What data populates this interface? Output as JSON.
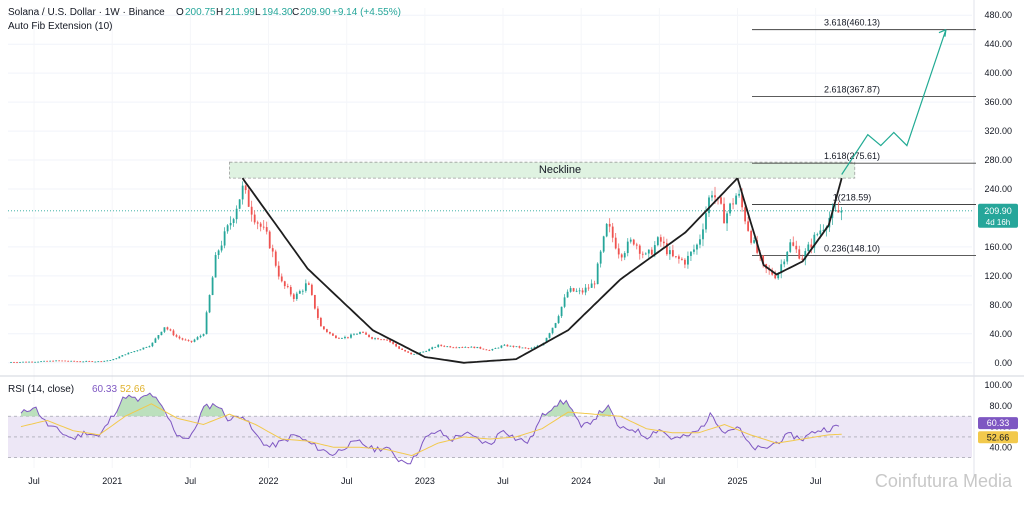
{
  "header": {
    "symbol": "Solana / U.S. Dollar · 1W · Binance",
    "o_label": "O",
    "o_value": "200.75",
    "h_label": "H",
    "h_value": "211.99",
    "l_label": "L",
    "l_value": "194.30",
    "c_label": "C",
    "c_value": "209.90",
    "change": "+9.14 (+4.55%)",
    "indicator": "Auto Fib Extension (10)"
  },
  "rsi_header": {
    "label": "RSI (14, close)",
    "rsi_value": "60.33",
    "ma_value": "52.66"
  },
  "colors": {
    "up": "#26a69a",
    "down": "#ef5350",
    "cup_curve": "#1e1e1e",
    "neckline_fill": "#dff2e1",
    "projection": "#22ab94",
    "rsi_line": "#7e57c2",
    "rsi_ma": "#f2c94c",
    "rsi_band": "#ede7f6",
    "price_tag": "#26a69a",
    "rsi_tag": "#7e57c2",
    "rsi_ma_tag": "#f2c94c"
  },
  "neckline_label": "Neckline",
  "price_tag": {
    "price": "209.90",
    "countdown": "4d 16h"
  },
  "rsi_tags": {
    "rsi": "60.33",
    "ma": "52.66"
  },
  "watermark": "Coinfutura Media",
  "fib_levels": [
    {
      "label": "3.618(460.13)",
      "price": 460.13
    },
    {
      "label": "2.618(367.87)",
      "price": 367.87
    },
    {
      "label": "1.618(275.61)",
      "price": 275.61
    },
    {
      "label": "1(218.59)",
      "price": 218.59
    },
    {
      "label": "0.236(148.10)",
      "price": 148.1
    }
  ],
  "x_labels": [
    "Jul",
    "2021",
    "Jul",
    "2022",
    "Jul",
    "2023",
    "Jul",
    "2024",
    "Jul",
    "2025",
    "Jul"
  ],
  "chart_data": {
    "type": "candlestick",
    "title": "Solana / U.S. Dollar · 1W · Binance",
    "price_axis": {
      "ticks": [
        0,
        40,
        80,
        120,
        160,
        200,
        240,
        280,
        320,
        360,
        400,
        440,
        480
      ],
      "tick_labels": [
        "0.00",
        "40.00",
        "80.00",
        "120.00",
        "160.00",
        "200.00",
        "240.00",
        "280.00",
        "320.00",
        "360.00",
        "400.00",
        "440.00",
        "480.00"
      ],
      "range": [
        -10,
        490
      ]
    },
    "rsi_axis": {
      "ticks": [
        40,
        60,
        80,
        100
      ],
      "tick_labels": [
        "40.00",
        "60.00",
        "80.00",
        "100.00"
      ],
      "range": [
        20,
        105
      ],
      "band": [
        30,
        70
      ]
    },
    "time_axis": {
      "labels": [
        "Jul",
        "2021",
        "Jul",
        "2022",
        "Jul",
        "2023",
        "Jul",
        "2024",
        "Jul",
        "2025",
        "Jul"
      ],
      "label_dates": [
        "2020-07",
        "2021-01",
        "2021-07",
        "2022-01",
        "2022-07",
        "2023-01",
        "2023-07",
        "2024-01",
        "2024-07",
        "2025-01",
        "2025-07"
      ],
      "range": [
        "2020-05",
        "2026-07"
      ]
    },
    "price_path": [
      [
        "2020-05",
        0.8
      ],
      [
        "2020-07",
        1.5
      ],
      [
        "2020-09",
        3.0
      ],
      [
        "2020-10",
        2.0
      ],
      [
        "2020-12",
        1.8
      ],
      [
        "2021-01",
        4
      ],
      [
        "2021-02",
        12
      ],
      [
        "2021-03",
        18
      ],
      [
        "2021-04",
        25
      ],
      [
        "2021-05",
        50
      ],
      [
        "2021-06",
        35
      ],
      [
        "2021-07",
        28
      ],
      [
        "2021-08",
        40
      ],
      [
        "2021-09",
        150
      ],
      [
        "2021-10",
        190
      ],
      [
        "2021-11",
        240
      ],
      [
        "2021-12",
        200
      ],
      [
        "2022-01",
        170
      ],
      [
        "2022-02",
        110
      ],
      [
        "2022-03",
        90
      ],
      [
        "2022-04",
        110
      ],
      [
        "2022-05",
        50
      ],
      [
        "2022-06",
        36
      ],
      [
        "2022-07",
        35
      ],
      [
        "2022-08",
        42
      ],
      [
        "2022-09",
        34
      ],
      [
        "2022-10",
        33
      ],
      [
        "2022-11",
        20
      ],
      [
        "2022-12",
        11
      ],
      [
        "2023-01",
        16
      ],
      [
        "2023-02",
        24
      ],
      [
        "2023-03",
        22
      ],
      [
        "2023-04",
        22
      ],
      [
        "2023-05",
        21
      ],
      [
        "2023-06",
        17
      ],
      [
        "2023-07",
        24
      ],
      [
        "2023-08",
        22
      ],
      [
        "2023-09",
        19
      ],
      [
        "2023-10",
        25
      ],
      [
        "2023-11",
        55
      ],
      [
        "2023-12",
        100
      ],
      [
        "2024-01",
        97
      ],
      [
        "2024-02",
        110
      ],
      [
        "2024-03",
        190
      ],
      [
        "2024-04",
        150
      ],
      [
        "2024-05",
        170
      ],
      [
        "2024-06",
        145
      ],
      [
        "2024-07",
        170
      ],
      [
        "2024-08",
        145
      ],
      [
        "2024-09",
        140
      ],
      [
        "2024-10",
        165
      ],
      [
        "2024-11",
        240
      ],
      [
        "2024-12",
        200
      ],
      [
        "2025-01",
        235
      ],
      [
        "2025-02",
        175
      ],
      [
        "2025-03",
        130
      ],
      [
        "2025-04",
        120
      ],
      [
        "2025-05",
        165
      ],
      [
        "2025-06",
        145
      ],
      [
        "2025-07",
        175
      ],
      [
        "2025-08",
        200
      ],
      [
        "2025-09",
        209.9
      ]
    ],
    "rsi_path": [
      [
        "2020-06",
        72
      ],
      [
        "2020-07",
        80
      ],
      [
        "2020-08",
        62
      ],
      [
        "2020-10",
        48
      ],
      [
        "2020-11",
        55
      ],
      [
        "2020-12",
        50
      ],
      [
        "2021-01",
        70
      ],
      [
        "2021-02",
        90
      ],
      [
        "2021-03",
        85
      ],
      [
        "2021-04",
        92
      ],
      [
        "2021-05",
        75
      ],
      [
        "2021-06",
        52
      ],
      [
        "2021-07",
        48
      ],
      [
        "2021-08",
        78
      ],
      [
        "2021-09",
        82
      ],
      [
        "2021-10",
        66
      ],
      [
        "2021-11",
        72
      ],
      [
        "2021-12",
        52
      ],
      [
        "2022-01",
        40
      ],
      [
        "2022-02",
        45
      ],
      [
        "2022-03",
        52
      ],
      [
        "2022-04",
        45
      ],
      [
        "2022-05",
        38
      ],
      [
        "2022-06",
        33
      ],
      [
        "2022-07",
        42
      ],
      [
        "2022-08",
        45
      ],
      [
        "2022-09",
        38
      ],
      [
        "2022-10",
        40
      ],
      [
        "2022-11",
        28
      ],
      [
        "2022-12",
        26
      ],
      [
        "2023-01",
        48
      ],
      [
        "2023-02",
        56
      ],
      [
        "2023-03",
        47
      ],
      [
        "2023-04",
        54
      ],
      [
        "2023-05",
        48
      ],
      [
        "2023-06",
        42
      ],
      [
        "2023-07",
        58
      ],
      [
        "2023-08",
        48
      ],
      [
        "2023-09",
        45
      ],
      [
        "2023-10",
        70
      ],
      [
        "2023-11",
        82
      ],
      [
        "2023-12",
        84
      ],
      [
        "2024-01",
        58
      ],
      [
        "2024-02",
        68
      ],
      [
        "2024-03",
        80
      ],
      [
        "2024-04",
        57
      ],
      [
        "2024-05",
        58
      ],
      [
        "2024-06",
        50
      ],
      [
        "2024-07",
        58
      ],
      [
        "2024-08",
        48
      ],
      [
        "2024-09",
        50
      ],
      [
        "2024-10",
        56
      ],
      [
        "2024-11",
        72
      ],
      [
        "2024-12",
        55
      ],
      [
        "2025-01",
        60
      ],
      [
        "2025-02",
        40
      ],
      [
        "2025-03",
        38
      ],
      [
        "2025-04",
        45
      ],
      [
        "2025-05",
        52
      ],
      [
        "2025-06",
        48
      ],
      [
        "2025-07",
        56
      ],
      [
        "2025-08",
        58
      ],
      [
        "2025-09",
        60.33
      ]
    ],
    "rsi_ma_path": [
      [
        "2020-06",
        60
      ],
      [
        "2020-08",
        66
      ],
      [
        "2020-10",
        56
      ],
      [
        "2020-12",
        52
      ],
      [
        "2021-02",
        70
      ],
      [
        "2021-04",
        82
      ],
      [
        "2021-06",
        68
      ],
      [
        "2021-08",
        62
      ],
      [
        "2021-10",
        72
      ],
      [
        "2021-12",
        62
      ],
      [
        "2022-02",
        48
      ],
      [
        "2022-04",
        46
      ],
      [
        "2022-06",
        40
      ],
      [
        "2022-08",
        40
      ],
      [
        "2022-10",
        38
      ],
      [
        "2022-12",
        32
      ],
      [
        "2023-02",
        44
      ],
      [
        "2023-04",
        50
      ],
      [
        "2023-06",
        48
      ],
      [
        "2023-08",
        50
      ],
      [
        "2023-10",
        58
      ],
      [
        "2023-12",
        74
      ],
      [
        "2024-02",
        72
      ],
      [
        "2024-04",
        70
      ],
      [
        "2024-06",
        58
      ],
      [
        "2024-08",
        54
      ],
      [
        "2024-10",
        54
      ],
      [
        "2024-12",
        62
      ],
      [
        "2025-02",
        52
      ],
      [
        "2025-04",
        44
      ],
      [
        "2025-06",
        48
      ],
      [
        "2025-08",
        52
      ],
      [
        "2025-09",
        52.66
      ]
    ],
    "cup_curve": [
      [
        "2021-11",
        255
      ],
      [
        "2022-04",
        130
      ],
      [
        "2022-09",
        45
      ],
      [
        "2023-01",
        8
      ],
      [
        "2023-04",
        0
      ],
      [
        "2023-08",
        5
      ],
      [
        "2023-12",
        45
      ],
      [
        "2024-04",
        115
      ],
      [
        "2024-09",
        180
      ],
      [
        "2025-01",
        255
      ]
    ],
    "handle_curve": [
      [
        "2025-01",
        255
      ],
      [
        "2025-03",
        135
      ],
      [
        "2025-04",
        122
      ],
      [
        "2025-06",
        140
      ],
      [
        "2025-08",
        190
      ],
      [
        "2025-09",
        255
      ]
    ],
    "projection": [
      [
        "2025-09",
        260
      ],
      [
        "2025-11",
        315
      ],
      [
        "2025-12",
        300
      ],
      [
        "2026-01",
        318
      ],
      [
        "2026-02",
        300
      ],
      [
        "2026-05",
        460
      ]
    ],
    "neckline_zone": {
      "x": [
        "2021-10",
        "2025-10"
      ],
      "y": [
        255,
        277
      ]
    },
    "current_price": 209.9
  }
}
